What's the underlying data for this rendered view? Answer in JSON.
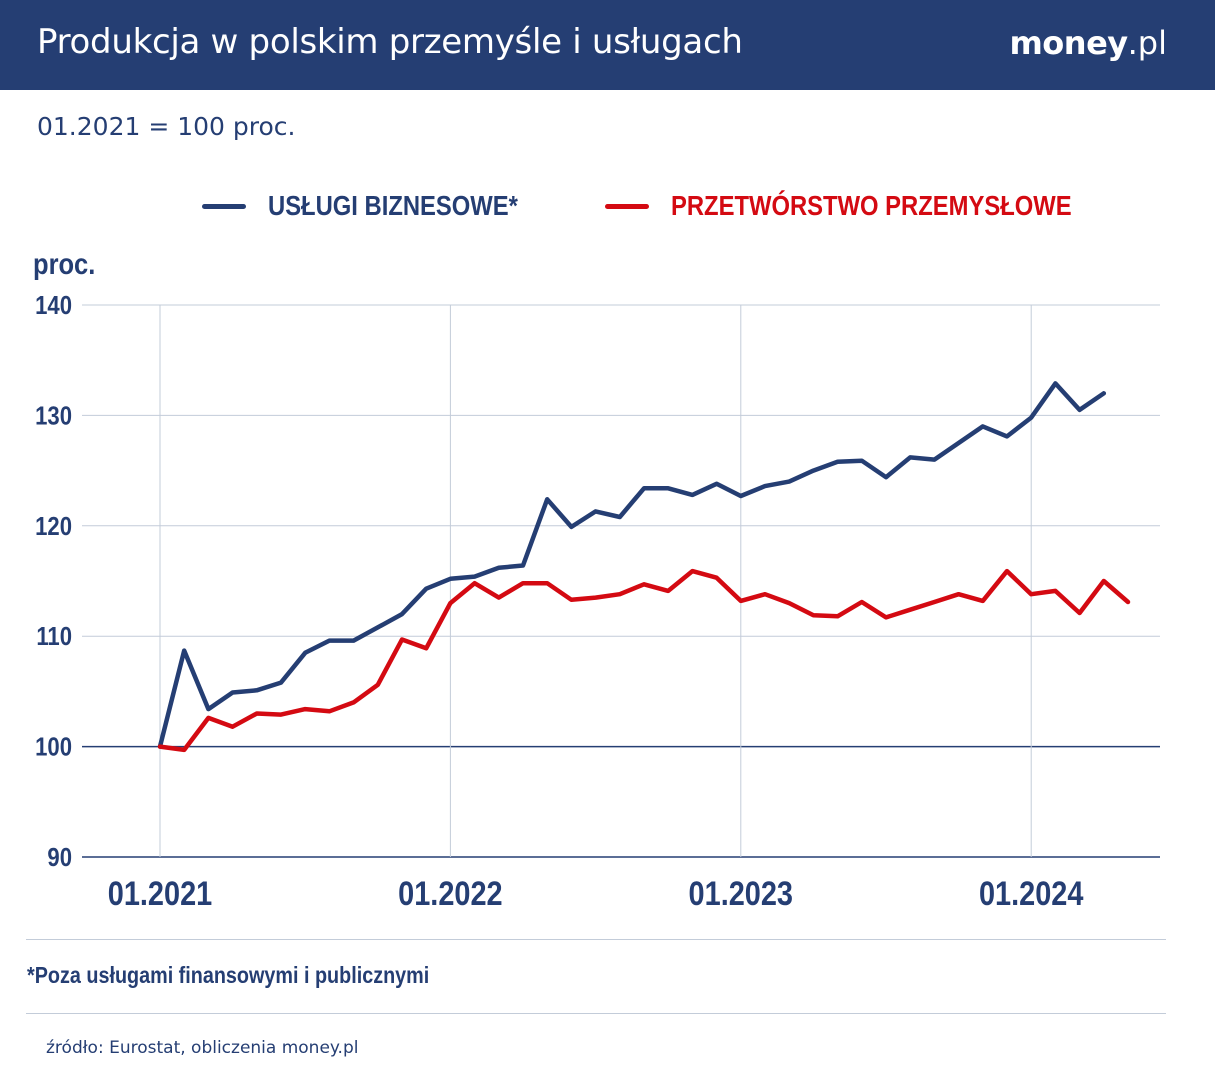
{
  "header": {
    "title": "Produkcja w polskim przemyśle i usługach",
    "brand_bold": "money",
    "brand_rest": ".pl"
  },
  "subtitle": "01.2021 = 100 proc.",
  "footnote": "*Poza usługami finansowymi i publicznymi",
  "source": "źródło: Eurostat, obliczenia money.pl",
  "colors": {
    "header_bg": "#253e73",
    "series_blue": "#253e73",
    "series_red": "#d40a12",
    "grid": "#c3ccd9"
  },
  "chart_data": {
    "type": "line",
    "ylabel": "proc.",
    "ylim": [
      90,
      140
    ],
    "yticks": [
      90,
      100,
      110,
      120,
      130,
      140
    ],
    "xticks": [
      "01.2021",
      "01.2022",
      "01.2023",
      "01.2024"
    ],
    "x_start": "01.2021",
    "grid": true,
    "legend_position": "top",
    "series": [
      {
        "name": "USŁUGI BIZNESOWE*",
        "color": "#253e73",
        "values": [
          100.0,
          108.7,
          103.4,
          104.9,
          105.1,
          105.8,
          108.5,
          109.6,
          109.6,
          110.8,
          112.0,
          114.3,
          115.2,
          115.4,
          116.2,
          116.4,
          122.4,
          119.9,
          121.3,
          120.8,
          123.4,
          123.4,
          122.8,
          123.8,
          122.7,
          123.6,
          124.0,
          125.0,
          125.8,
          125.9,
          124.4,
          126.2,
          126.0,
          127.5,
          129.0,
          128.1,
          129.8,
          132.9,
          130.5,
          132.0
        ]
      },
      {
        "name": "PRZETWÓRSTWO PRZEMYSŁOWE",
        "color": "#d40a12",
        "values": [
          100.0,
          99.7,
          102.6,
          101.8,
          103.0,
          102.9,
          103.4,
          103.2,
          104.0,
          105.6,
          109.7,
          108.9,
          113.0,
          114.8,
          113.5,
          114.8,
          114.8,
          113.3,
          113.5,
          113.8,
          114.7,
          114.1,
          115.9,
          115.3,
          113.2,
          113.8,
          113.0,
          111.9,
          111.8,
          113.1,
          111.7,
          112.4,
          113.1,
          113.8,
          113.2,
          115.9,
          113.8,
          114.1,
          112.1,
          115.0,
          113.1
        ]
      }
    ]
  }
}
